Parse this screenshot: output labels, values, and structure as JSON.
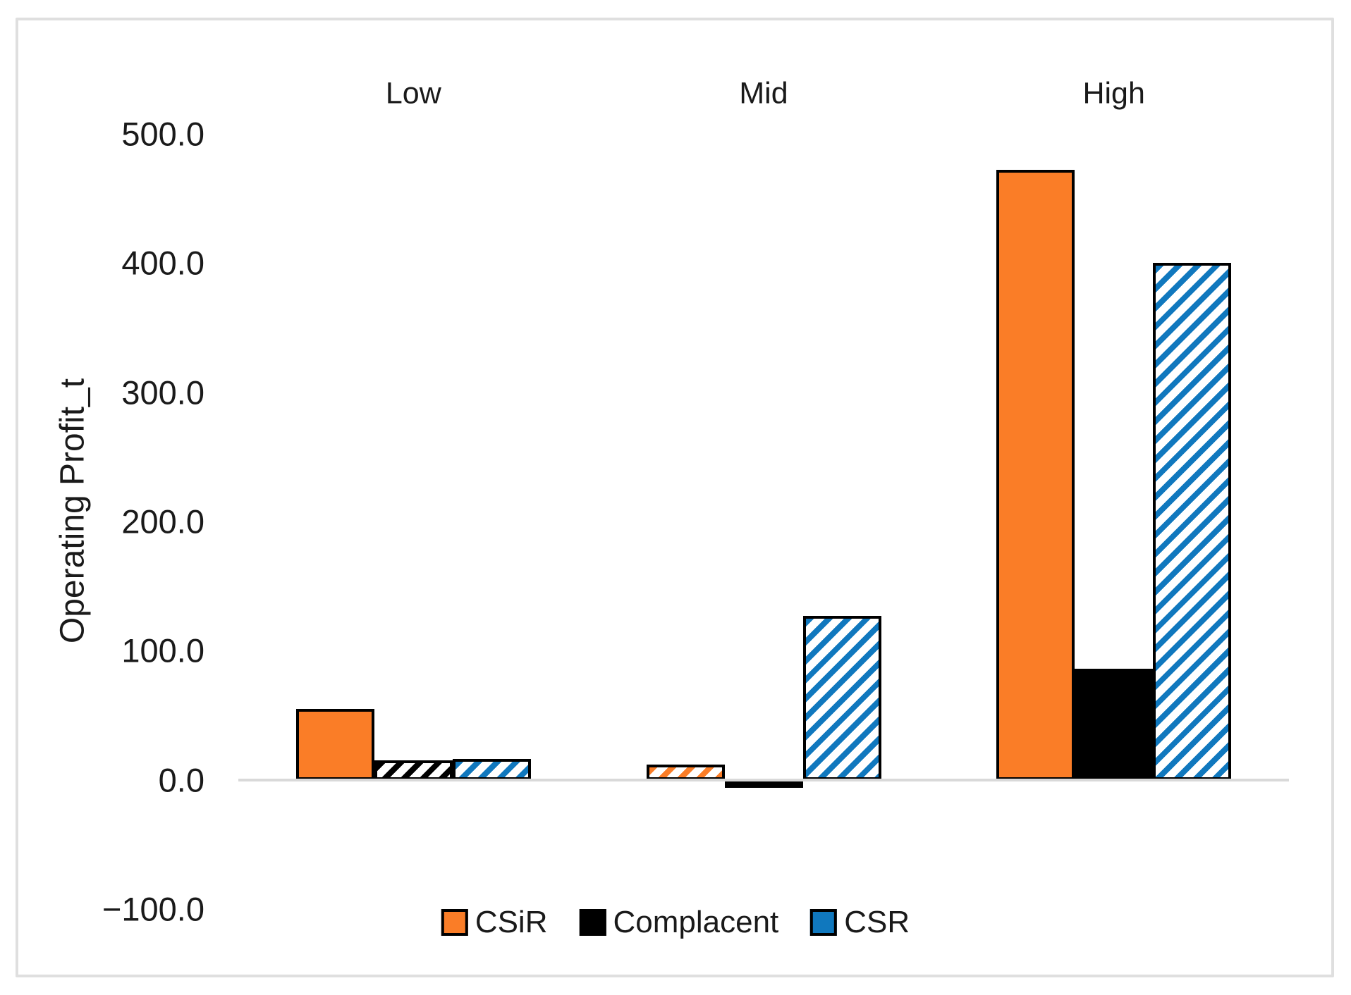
{
  "chart_data": {
    "type": "bar",
    "title": "",
    "xlabel": "",
    "ylabel": "Operating Profit_t",
    "categories": [
      "Low",
      "Mid",
      "High"
    ],
    "series": [
      {
        "name": "CSiR",
        "color": "#fa7d27",
        "values": [
          55,
          12,
          472
        ],
        "patterns": [
          "solid",
          "hatch",
          "solid"
        ]
      },
      {
        "name": "Complacent",
        "color": "#000000",
        "values": [
          15,
          -6,
          86
        ],
        "patterns": [
          "hatch",
          "solid",
          "solid"
        ]
      },
      {
        "name": "CSR",
        "color": "#1078be",
        "values": [
          16,
          127,
          400
        ],
        "patterns": [
          "hatch",
          "hatch",
          "hatch"
        ]
      }
    ],
    "ylim": [
      -100,
      500
    ],
    "yticks": [
      {
        "label": "500.0",
        "value": 500
      },
      {
        "label": "400.0",
        "value": 400
      },
      {
        "label": "300.0",
        "value": 300
      },
      {
        "label": "200.0",
        "value": 200
      },
      {
        "label": "100.0",
        "value": 100
      },
      {
        "label": "0.0",
        "value": 0
      },
      {
        "label": "−100.0",
        "value": -100
      }
    ],
    "grid": false,
    "legend_position": "bottom",
    "legend": [
      "CSiR",
      "Complacent",
      "CSR"
    ]
  },
  "colors": {
    "axis_line": "#d9d9d9",
    "frame_border": "#dfdfdf",
    "text": "#1a1a1a",
    "background": "#ffffff"
  }
}
